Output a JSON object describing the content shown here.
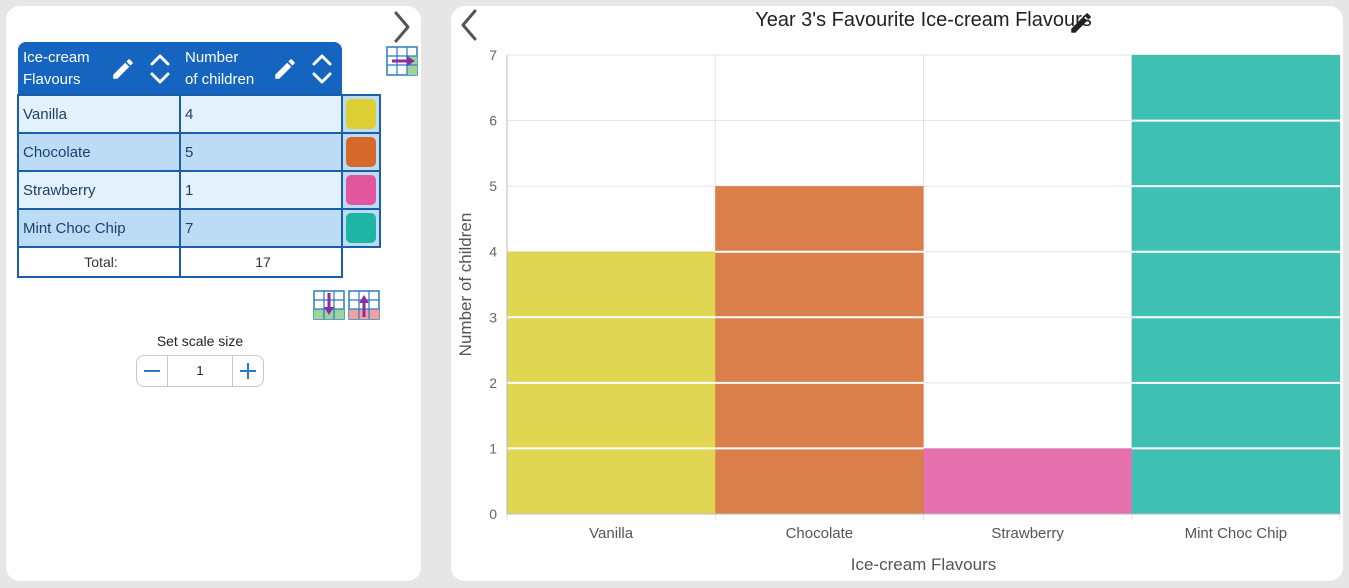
{
  "table": {
    "col1_header": [
      "Ice-cream",
      "Flavours"
    ],
    "col2_header": [
      "Number",
      "of children"
    ],
    "rows": [
      {
        "label": "Vanilla",
        "value": "4",
        "color": "#dccf33"
      },
      {
        "label": "Chocolate",
        "value": "5",
        "color": "#d4692a"
      },
      {
        "label": "Strawberry",
        "value": "1",
        "color": "#e2569f"
      },
      {
        "label": "Mint Choc Chip",
        "value": "7",
        "color": "#1fb5a5"
      }
    ],
    "total_label": "Total:",
    "total_value": "17"
  },
  "scale": {
    "label": "Set scale size",
    "value": "1"
  },
  "chart_data": {
    "type": "bar",
    "title": "Year 3's Favourite Ice-cream Flavours",
    "xlabel": "Ice-cream Flavours",
    "ylabel": "Number of children",
    "categories": [
      "Vanilla",
      "Chocolate",
      "Strawberry",
      "Mint Choc Chip"
    ],
    "values": [
      4,
      5,
      1,
      7
    ],
    "colors": [
      "#dccf33",
      "#d4692a",
      "#e2569f",
      "#1fb5a5"
    ],
    "ylim": [
      0,
      7
    ],
    "yticks": [
      0,
      1,
      2,
      3,
      4,
      5,
      6,
      7
    ],
    "scale_step": 1,
    "grid": true
  }
}
